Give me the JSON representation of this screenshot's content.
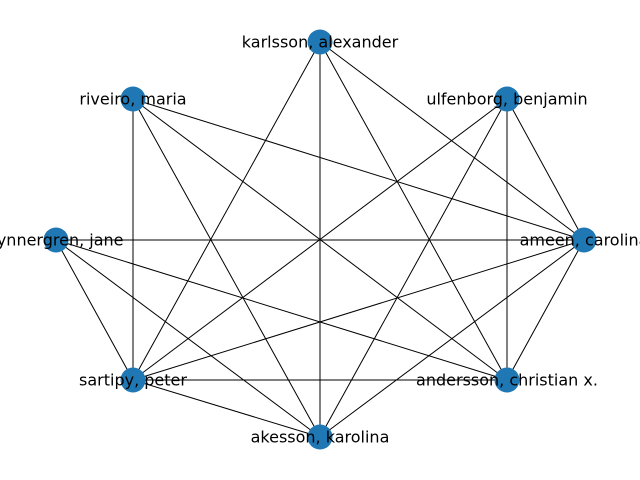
{
  "graph": {
    "node_color": "#1f77b4",
    "edge_color": "#000000",
    "nodes": [
      {
        "id": "karlsson",
        "label": "karlsson, alexander"
      },
      {
        "id": "ulfenborg",
        "label": "ulfenborg, benjamin"
      },
      {
        "id": "ameen",
        "label": "ameen, carolina"
      },
      {
        "id": "andersson",
        "label": "andersson, christian x."
      },
      {
        "id": "akesson",
        "label": "akesson, karolina"
      },
      {
        "id": "sartipy",
        "label": "sartipy, peter"
      },
      {
        "id": "synnergren",
        "label": "synnergren, jane"
      },
      {
        "id": "riveiro",
        "label": "riveiro, maria"
      }
    ],
    "edges": [
      [
        "karlsson",
        "ameen"
      ],
      [
        "karlsson",
        "andersson"
      ],
      [
        "karlsson",
        "akesson"
      ],
      [
        "karlsson",
        "sartipy"
      ],
      [
        "ulfenborg",
        "ameen"
      ],
      [
        "ulfenborg",
        "andersson"
      ],
      [
        "ulfenborg",
        "akesson"
      ],
      [
        "ulfenborg",
        "sartipy"
      ],
      [
        "ameen",
        "andersson"
      ],
      [
        "ameen",
        "akesson"
      ],
      [
        "ameen",
        "sartipy"
      ],
      [
        "ameen",
        "synnergren"
      ],
      [
        "ameen",
        "riveiro"
      ],
      [
        "andersson",
        "sartipy"
      ],
      [
        "andersson",
        "synnergren"
      ],
      [
        "andersson",
        "riveiro"
      ],
      [
        "akesson",
        "sartipy"
      ],
      [
        "akesson",
        "synnergren"
      ],
      [
        "akesson",
        "riveiro"
      ],
      [
        "sartipy",
        "synnergren"
      ],
      [
        "sartipy",
        "riveiro"
      ]
    ]
  }
}
